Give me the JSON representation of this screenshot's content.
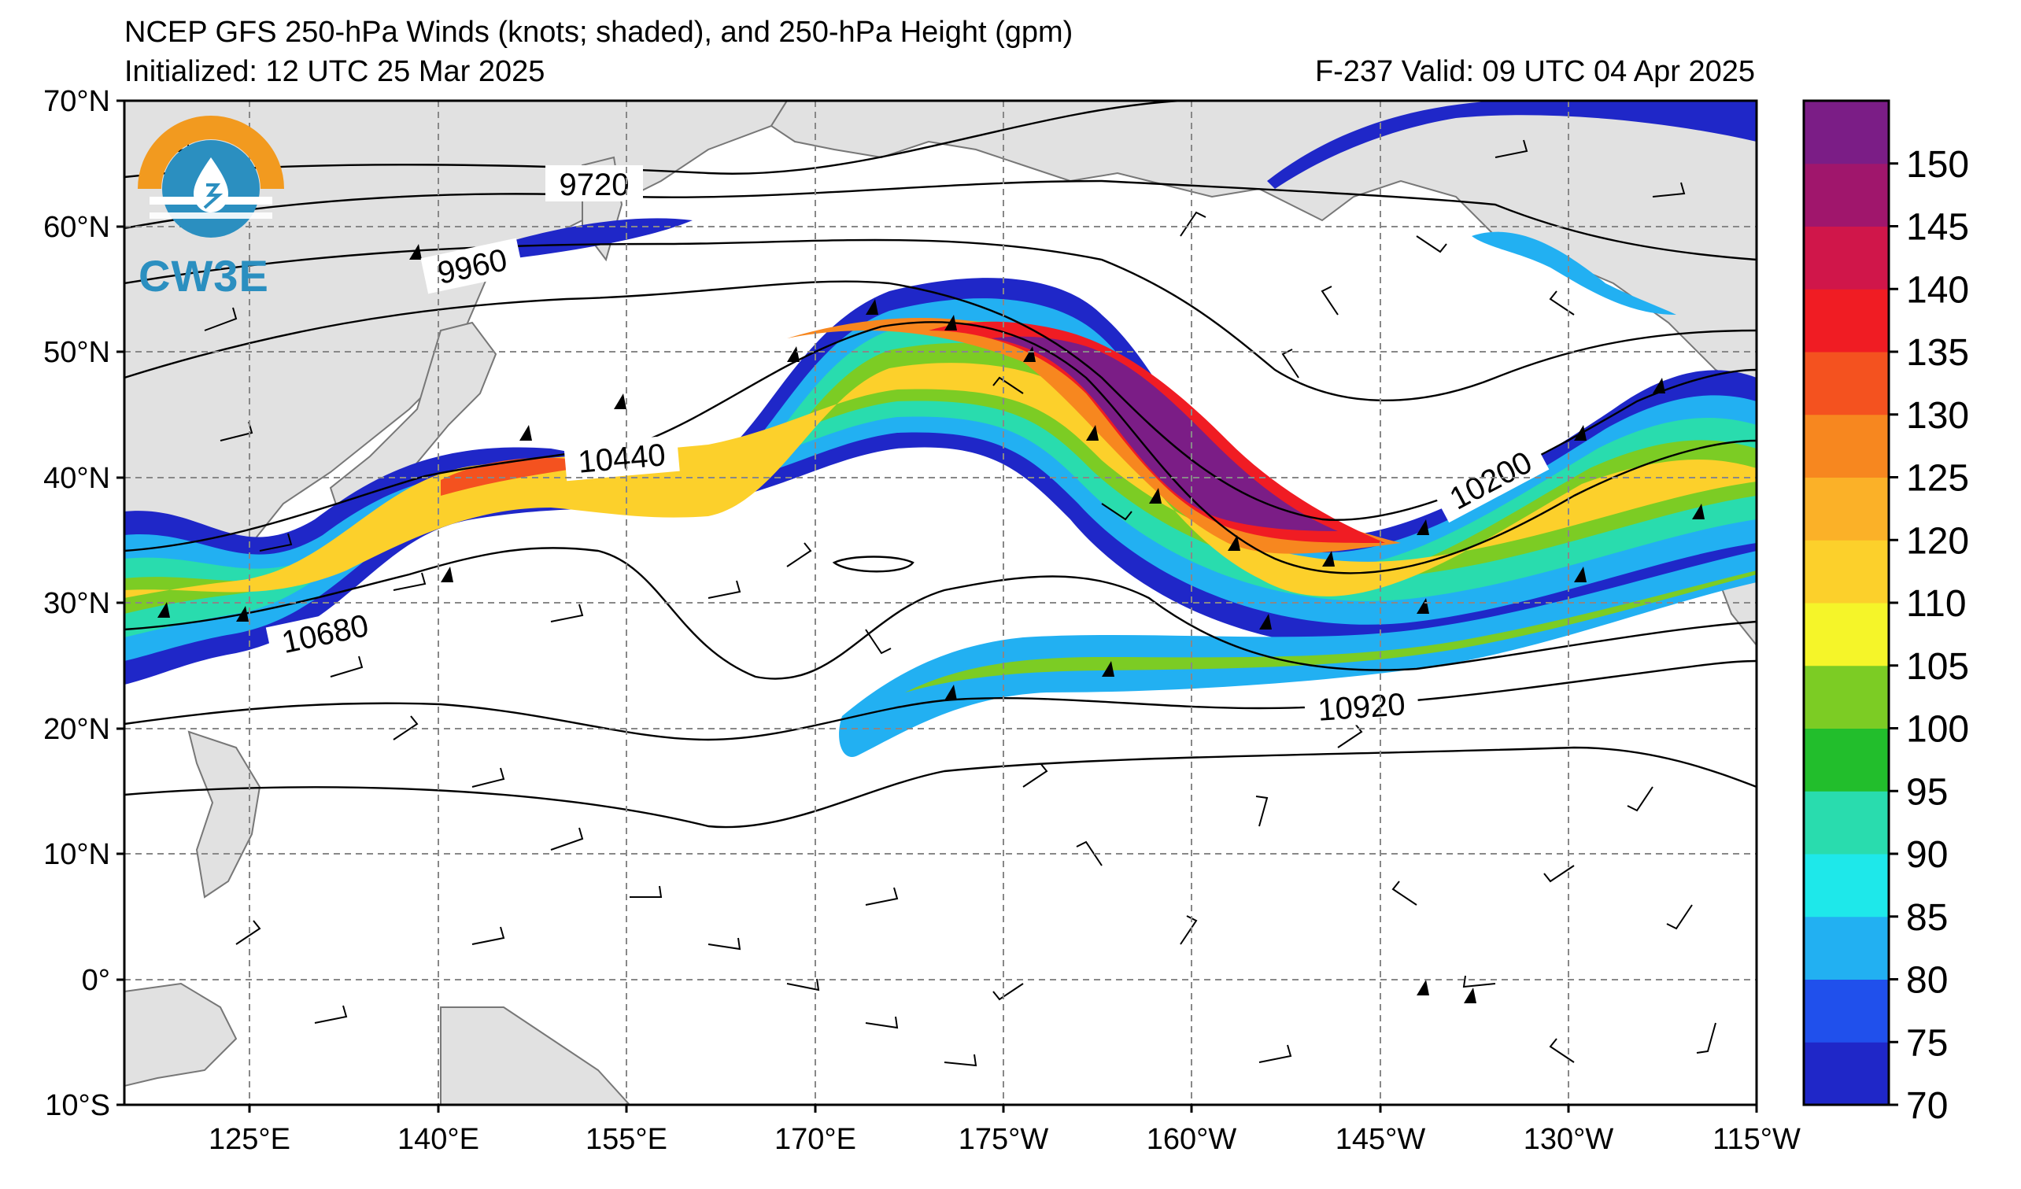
{
  "title": {
    "line1": "NCEP GFS 250-hPa Winds (knots; shaded), and 250-hPa Height (gpm)",
    "line2": "Initialized: 12 UTC 25 Mar 2025",
    "valid": "F-237  Valid: 09 UTC 04 Apr 2025"
  },
  "logo": {
    "text": "CW3E",
    "icon": "cw3e-logo-icon"
  },
  "axes": {
    "lat_labels": [
      "70°N",
      "60°N",
      "50°N",
      "40°N",
      "30°N",
      "20°N",
      "10°N",
      "0°",
      "10°S"
    ],
    "lon_labels": [
      "125°E",
      "140°E",
      "155°E",
      "170°E",
      "175°W",
      "160°W",
      "145°W",
      "130°W",
      "115°W"
    ]
  },
  "colorbar": {
    "levels": [
      70,
      75,
      80,
      85,
      90,
      95,
      100,
      105,
      110,
      120,
      125,
      130,
      135,
      140,
      145,
      150
    ],
    "tick_labels": [
      "70",
      "75",
      "80",
      "85",
      "90",
      "95",
      "100",
      "105",
      "110",
      "120",
      "125",
      "130",
      "135",
      "140",
      "145",
      "150"
    ],
    "colors": [
      "#1f27c8",
      "#2050ec",
      "#22b0f2",
      "#1ee8ea",
      "#29dcae",
      "#22be2c",
      "#7ccc24",
      "#f5f529",
      "#fcd02b",
      "#fbb128",
      "#f7871f",
      "#f4521f",
      "#f01c23",
      "#d0164a",
      "#a0166c",
      "#7b1d86"
    ]
  },
  "contours": {
    "labels": [
      "9720",
      "9960",
      "10440",
      "10680",
      "10200",
      "10920"
    ]
  }
}
